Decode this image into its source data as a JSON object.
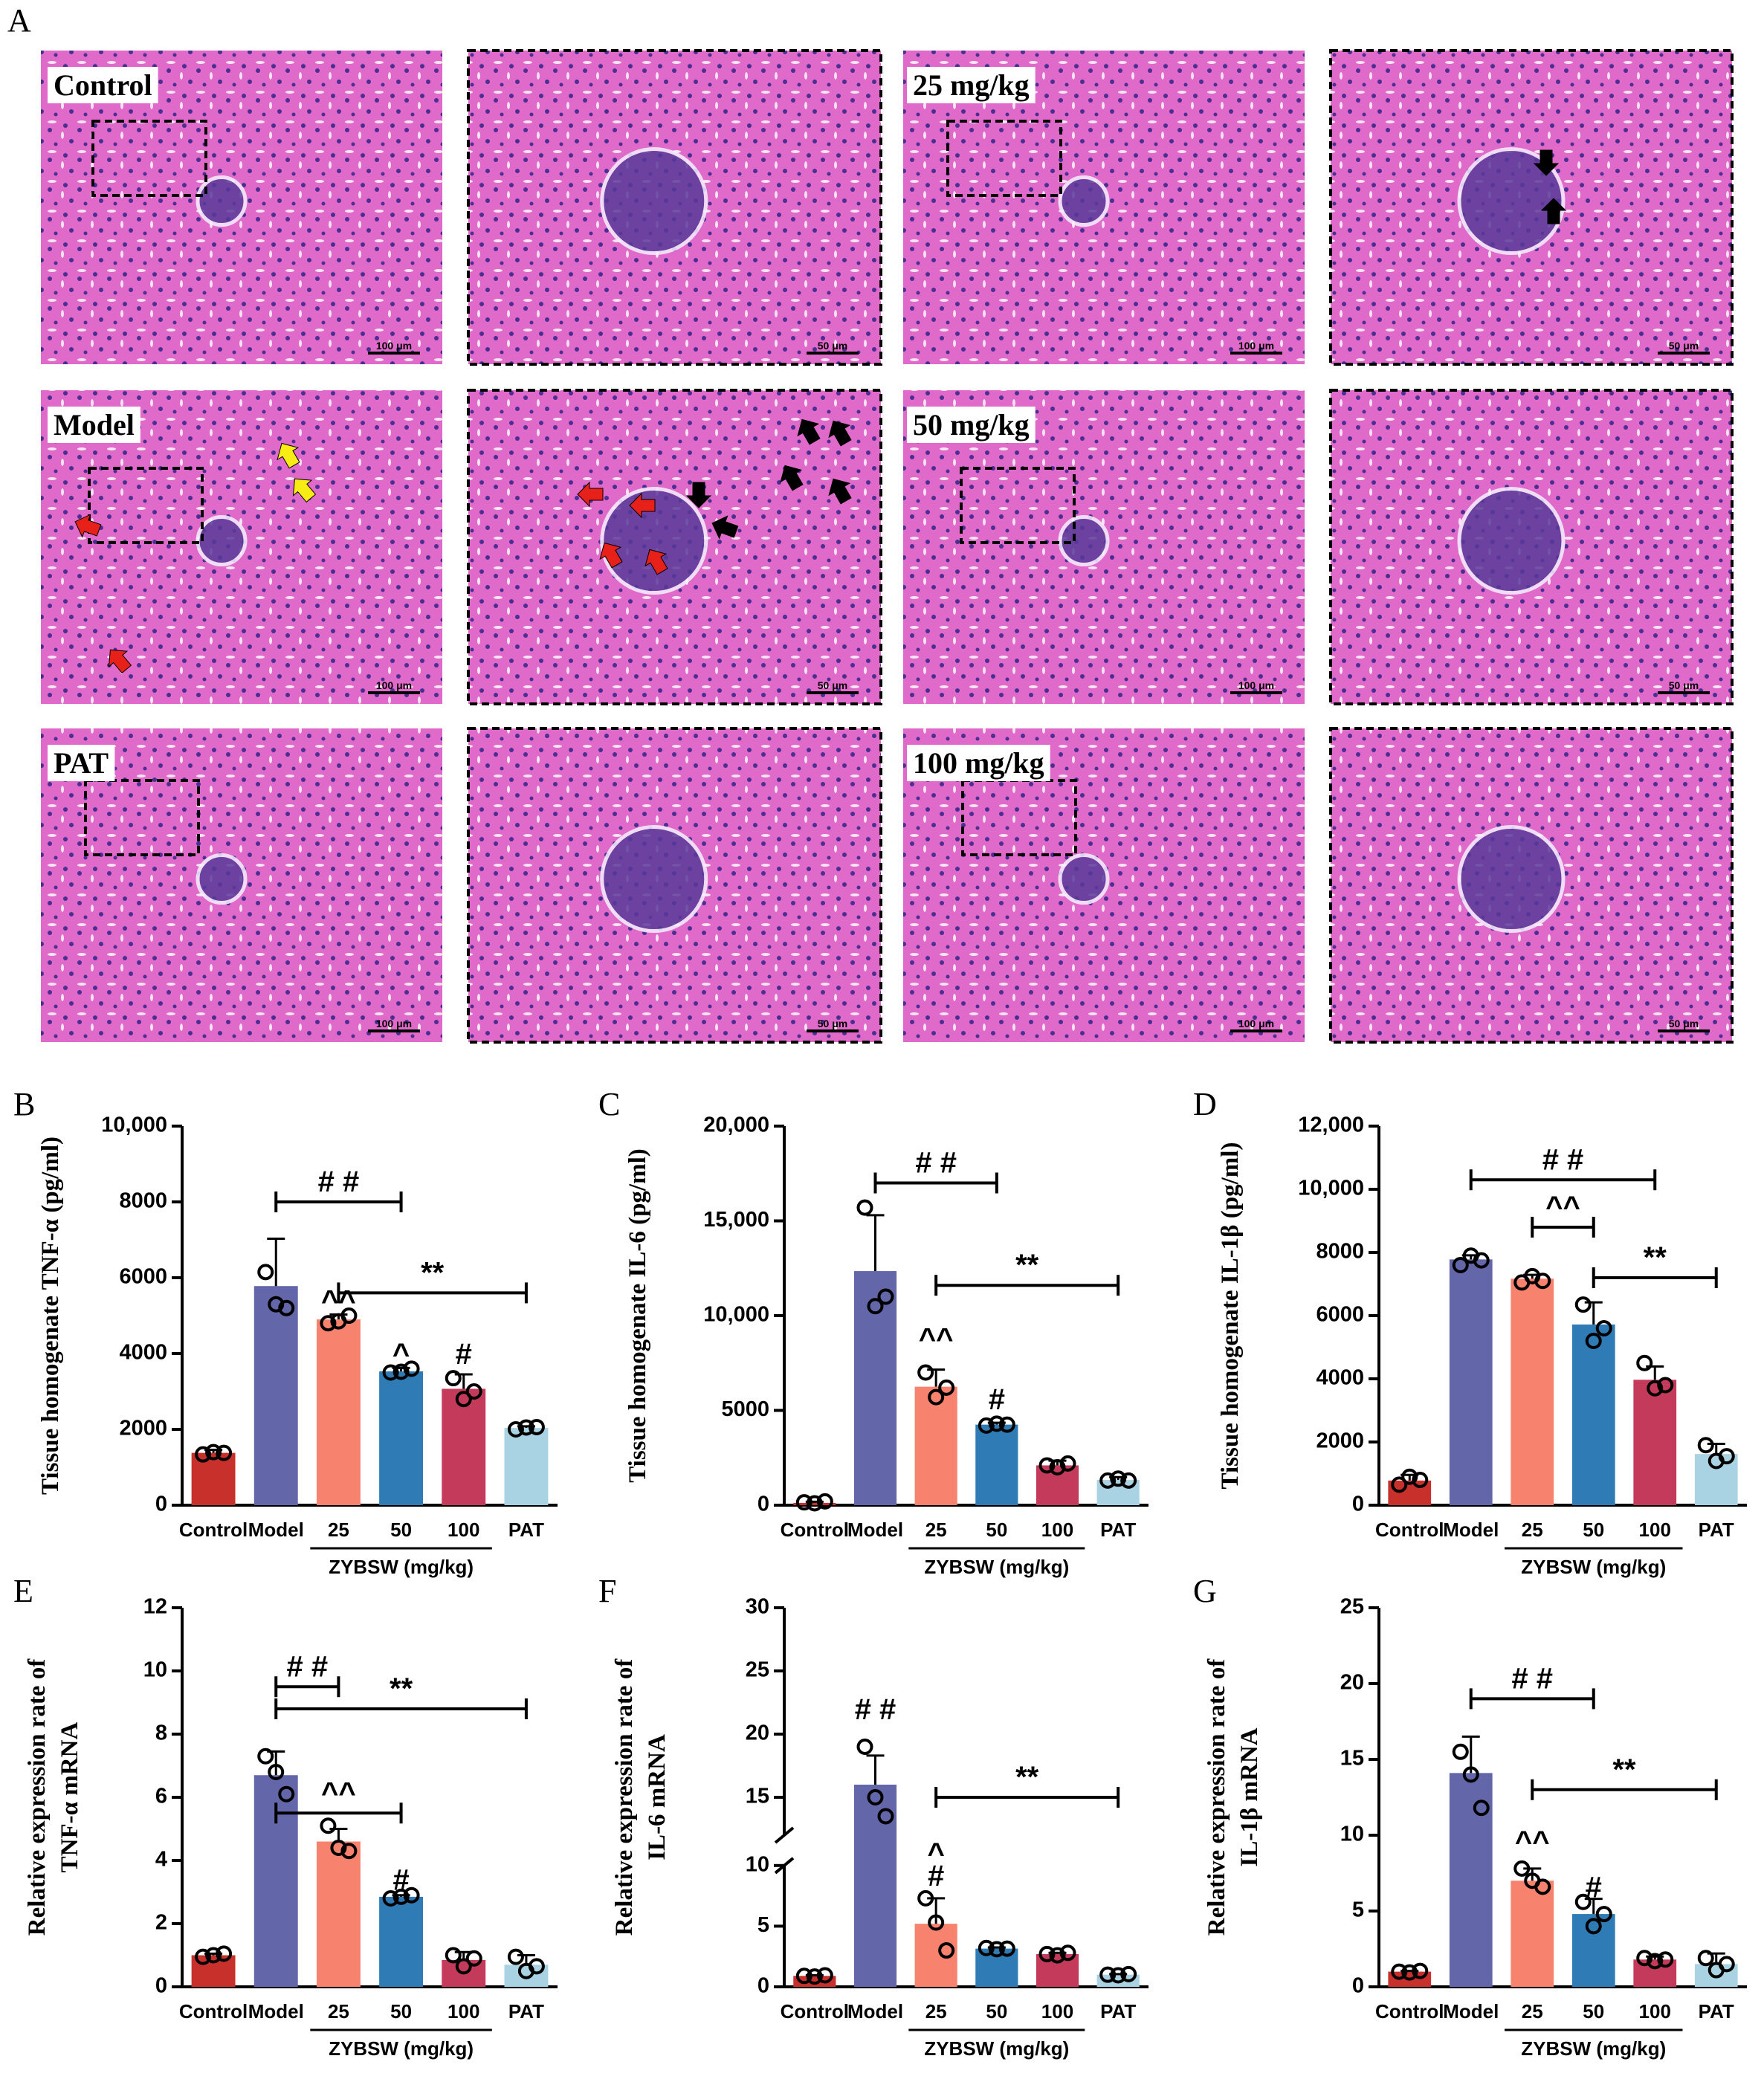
{
  "panel_letters": [
    "A",
    "B",
    "C",
    "D",
    "E",
    "F",
    "G"
  ],
  "histology": {
    "rows": [
      {
        "left_label": "Control",
        "right_label": "25 mg/kg"
      },
      {
        "left_label": "Model",
        "right_label": "50 mg/kg"
      },
      {
        "left_label": "PAT",
        "right_label": "100 mg/kg"
      }
    ],
    "scale_wide": "100 μm",
    "scale_zoom": "50 μm",
    "colors": {
      "tissue": "#e063c8",
      "nuclei": "#3a2a8a",
      "frame": "#000000",
      "arrow_red": "#e8201a",
      "arrow_yellow": "#f7ec14",
      "arrow_black": "#000000"
    }
  },
  "group_label": "ZYBSW (mg/kg)",
  "chart_data": [
    {
      "panel": "B",
      "type": "bar",
      "ylabel": "Tissue homogenate TNF-α (pg/ml)",
      "ylim": [
        0,
        10000
      ],
      "yticks": [
        0,
        2000,
        4000,
        6000,
        8000,
        10000
      ],
      "ytick_labels": [
        "0",
        "2000",
        "4000",
        "6000",
        "8000",
        "10,000"
      ],
      "categories": [
        "Control",
        "Model",
        "25",
        "50",
        "100",
        "PAT"
      ],
      "values": [
        1380,
        5780,
        4900,
        3530,
        3070,
        2040
      ],
      "errors": [
        80,
        1250,
        130,
        90,
        380,
        40
      ],
      "points": [
        [
          1340,
          1400,
          1380
        ],
        [
          6150,
          5300,
          5200
        ],
        [
          4800,
          4850,
          5000
        ],
        [
          3500,
          3520,
          3600
        ],
        [
          3350,
          2800,
          3000
        ],
        [
          2000,
          2050,
          2060
        ]
      ],
      "colors": [
        "#c8302c",
        "#6366a8",
        "#f7836e",
        "#2e7bb5",
        "#c43a5a",
        "#a9d3e3"
      ],
      "annotations": [
        {
          "text": "^^",
          "category": 2,
          "value": 5400
        },
        {
          "text": "^",
          "category": 3,
          "value": 4000
        },
        {
          "text": "#",
          "category": 4,
          "value": 4000
        }
      ],
      "brackets": [
        {
          "text": "# #",
          "from": 1,
          "to": 3,
          "value": 8000
        },
        {
          "text": "**",
          "from": 2,
          "to": 5,
          "value": 5600
        }
      ]
    },
    {
      "panel": "C",
      "type": "bar",
      "ylabel": "Tissue homogenate IL-6 (pg/ml)",
      "ylim": [
        0,
        20000
      ],
      "yticks": [
        0,
        5000,
        10000,
        15000,
        20000
      ],
      "ytick_labels": [
        "0",
        "5000",
        "10,000",
        "15,000",
        "20,000"
      ],
      "categories": [
        "Control",
        "Model",
        "25",
        "50",
        "100",
        "PAT"
      ],
      "values": [
        120,
        12350,
        6250,
        4250,
        2100,
        1330
      ],
      "errors": [
        60,
        2950,
        900,
        100,
        250,
        150
      ],
      "points": [
        [
          150,
          100,
          200
        ],
        [
          15700,
          10500,
          11000
        ],
        [
          7000,
          5700,
          6200
        ],
        [
          4200,
          4300,
          4250
        ],
        [
          2100,
          2000,
          2200
        ],
        [
          1300,
          1400,
          1300
        ]
      ],
      "colors": [
        "#c8302c",
        "#6366a8",
        "#f7836e",
        "#2e7bb5",
        "#c43a5a",
        "#a9d3e3"
      ],
      "annotations": [
        {
          "text": "^^",
          "category": 2,
          "value": 8800
        },
        {
          "text": "#",
          "category": 3,
          "value": 5600
        }
      ],
      "brackets": [
        {
          "text": "# #",
          "from": 1,
          "to": 3,
          "value": 17000
        },
        {
          "text": "**",
          "from": 2,
          "to": 5,
          "value": 11600
        }
      ]
    },
    {
      "panel": "D",
      "type": "bar",
      "ylabel": "Tissue homogenate IL-1β (pg/ml)",
      "ylim": [
        0,
        12000
      ],
      "yticks": [
        0,
        2000,
        4000,
        6000,
        8000,
        10000,
        12000
      ],
      "ytick_labels": [
        "0",
        "2000",
        "4000",
        "6000",
        "8000",
        "10,000",
        "12,000"
      ],
      "categories": [
        "Control",
        "Model",
        "25",
        "50",
        "100",
        "PAT"
      ],
      "values": [
        780,
        7780,
        7170,
        5720,
        3970,
        1620
      ],
      "errors": [
        180,
        130,
        120,
        700,
        420,
        320
      ],
      "points": [
        [
          650,
          900,
          800
        ],
        [
          7600,
          7900,
          7750
        ],
        [
          7050,
          7250,
          7100
        ],
        [
          6350,
          5200,
          5600
        ],
        [
          4500,
          3700,
          3800
        ],
        [
          1900,
          1400,
          1550
        ]
      ],
      "colors": [
        "#c8302c",
        "#6366a8",
        "#f7836e",
        "#2e7bb5",
        "#c43a5a",
        "#a9d3e3"
      ],
      "annotations": [],
      "brackets": [
        {
          "text": "# #",
          "from": 1,
          "to": 4,
          "value": 10300
        },
        {
          "text": "^^",
          "from": 2,
          "to": 3,
          "value": 8800
        },
        {
          "text": "**",
          "from": 3,
          "to": 5,
          "value": 7200
        }
      ]
    },
    {
      "panel": "E",
      "type": "bar",
      "ylabel": "Relative expression rate of TNF-α mRNA",
      "ylim": [
        0,
        12
      ],
      "yticks": [
        0,
        2,
        4,
        6,
        8,
        10,
        12
      ],
      "ytick_labels": [
        "0",
        "2",
        "4",
        "6",
        "8",
        "10",
        "12"
      ],
      "categories": [
        "Control",
        "Model",
        "25",
        "50",
        "100",
        "PAT"
      ],
      "values": [
        1.0,
        6.7,
        4.6,
        2.85,
        0.85,
        0.7
      ],
      "errors": [
        0.05,
        0.75,
        0.4,
        0.05,
        0.25,
        0.3
      ],
      "points": [
        [
          0.95,
          1.0,
          1.05
        ],
        [
          7.3,
          6.8,
          6.1
        ],
        [
          5.1,
          4.4,
          4.3
        ],
        [
          2.8,
          2.85,
          2.9
        ],
        [
          1.0,
          0.65,
          0.9
        ],
        [
          0.95,
          0.5,
          0.65
        ]
      ],
      "colors": [
        "#c8302c",
        "#6366a8",
        "#f7836e",
        "#2e7bb5",
        "#c43a5a",
        "#a9d3e3"
      ],
      "annotations": [
        {
          "text": "#",
          "category": 3,
          "value": 3.4
        }
      ],
      "brackets": [
        {
          "text": "# #",
          "from": 1,
          "to": 2,
          "value": 9.5
        },
        {
          "text": "^^",
          "from": 1,
          "to": 3,
          "value": 5.5
        },
        {
          "text": "**",
          "from": 1,
          "to": 5,
          "value": 8.8
        }
      ]
    },
    {
      "panel": "F",
      "type": "bar",
      "ylabel": "Relative expression rate of IL-6 mRNA",
      "ylim": [
        0,
        30
      ],
      "yticks": [
        0,
        5,
        10,
        15,
        20,
        25,
        30
      ],
      "ytick_labels": [
        "0",
        "5",
        "10",
        "15",
        "20",
        "25",
        "30"
      ],
      "axis_break": [
        10,
        12
      ],
      "categories": [
        "Control",
        "Model",
        "25",
        "50",
        "100",
        "PAT"
      ],
      "values": [
        0.9,
        16.0,
        5.2,
        3.15,
        2.7,
        1.0
      ],
      "errors": [
        0.05,
        2.3,
        2.1,
        0.1,
        0.1,
        0.05
      ],
      "points": [
        [
          0.9,
          0.85,
          0.95
        ],
        [
          19.0,
          15.0,
          13.5
        ],
        [
          7.3,
          5.3,
          3.0
        ],
        [
          3.2,
          3.1,
          3.15
        ],
        [
          2.7,
          2.6,
          2.8
        ],
        [
          1.0,
          0.95,
          1.05
        ]
      ],
      "colors": [
        "#c8302c",
        "#6366a8",
        "#f7836e",
        "#2e7bb5",
        "#c43a5a",
        "#a9d3e3"
      ],
      "annotations": [
        {
          "text": "# #",
          "category": 1,
          "value": 22
        },
        {
          "text": "^",
          "category": 2,
          "value": 10.6
        },
        {
          "text": "#",
          "category": 2,
          "value": 9.2
        }
      ],
      "brackets": [
        {
          "text": "**",
          "from": 2,
          "to": 5,
          "value": 15
        }
      ]
    },
    {
      "panel": "G",
      "type": "bar",
      "ylabel": "Relative expression rate of IL-1β mRNA",
      "ylim": [
        0,
        25
      ],
      "yticks": [
        0,
        5,
        10,
        15,
        20,
        25
      ],
      "ytick_labels": [
        "0",
        "5",
        "10",
        "15",
        "20",
        "25"
      ],
      "categories": [
        "Control",
        "Model",
        "25",
        "50",
        "100",
        "PAT"
      ],
      "values": [
        1.0,
        14.1,
        7.0,
        4.8,
        1.8,
        1.5
      ],
      "errors": [
        0.05,
        2.4,
        0.8,
        1.0,
        0.2,
        0.7
      ],
      "points": [
        [
          1.0,
          0.95,
          1.05
        ],
        [
          15.5,
          14.0,
          11.8
        ],
        [
          7.8,
          7.0,
          6.6
        ],
        [
          5.6,
          4.0,
          4.8
        ],
        [
          1.9,
          1.7,
          1.8
        ],
        [
          1.9,
          1.1,
          1.5
        ]
      ],
      "colors": [
        "#c8302c",
        "#6366a8",
        "#f7836e",
        "#2e7bb5",
        "#c43a5a",
        "#a9d3e3"
      ],
      "annotations": [
        {
          "text": "^^",
          "category": 2,
          "value": 9.6
        },
        {
          "text": "#",
          "category": 3,
          "value": 6.6
        }
      ],
      "brackets": [
        {
          "text": "# #",
          "from": 1,
          "to": 3,
          "value": 19
        },
        {
          "text": "**",
          "from": 2,
          "to": 5,
          "value": 13
        }
      ]
    }
  ]
}
